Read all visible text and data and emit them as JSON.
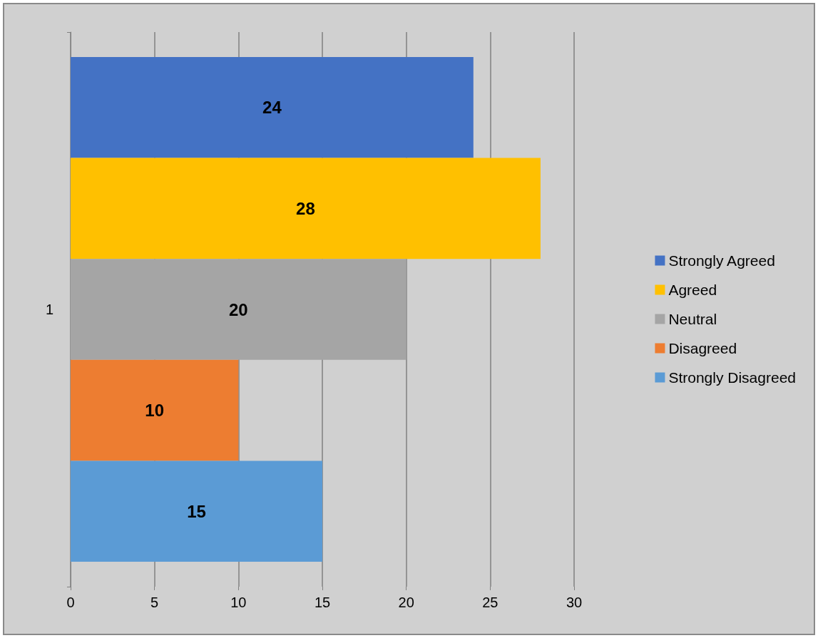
{
  "chart_data": {
    "type": "bar",
    "orientation": "horizontal",
    "categories": [
      "1"
    ],
    "series": [
      {
        "name": "Strongly Agreed",
        "color": "#4472c4",
        "values": [
          24
        ]
      },
      {
        "name": "Agreed",
        "color": "#ffc000",
        "values": [
          28
        ]
      },
      {
        "name": "Neutral",
        "color": "#a5a5a5",
        "values": [
          20
        ]
      },
      {
        "name": "Disagreed",
        "color": "#ed7d31",
        "values": [
          10
        ]
      },
      {
        "name": "Strongly Disagreed",
        "color": "#5b9bd5",
        "values": [
          15
        ]
      }
    ],
    "xlim": [
      0,
      30
    ],
    "xticks": [
      0,
      5,
      10,
      15,
      20,
      25,
      30
    ],
    "grid": "x",
    "legend": "right",
    "data_labels": true
  }
}
